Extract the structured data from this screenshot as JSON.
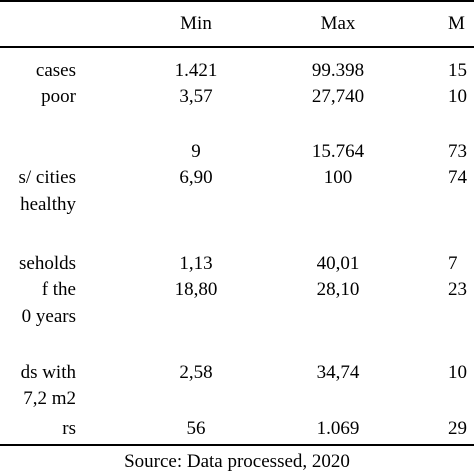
{
  "table": {
    "headers": [
      "Min",
      "Max",
      "M"
    ],
    "rows": [
      {
        "label": [
          "cases"
        ],
        "min": "1.421",
        "max": "99.398",
        "mean": "15"
      },
      {
        "label": [
          "poor"
        ],
        "min": "3,57",
        "max": "27,740",
        "mean": "10"
      },
      {
        "label": [
          ""
        ],
        "min": "9",
        "max": "15.764",
        "mean": "73"
      },
      {
        "label": [
          "s/ cities",
          "healthy"
        ],
        "min": "6,90",
        "max": "100",
        "mean": "74"
      },
      {
        "label": [
          "seholds"
        ],
        "min": "1,13",
        "max": "40,01",
        "mean": "7"
      },
      {
        "label": [
          "f the",
          "0 years"
        ],
        "min": "18,80",
        "max": "28,10",
        "mean": "23"
      },
      {
        "label": [
          "ds with",
          "7,2 m2"
        ],
        "min": "2,58",
        "max": "34,74",
        "mean": "10"
      },
      {
        "label": [
          "rs"
        ],
        "min": "56",
        "max": "1.069",
        "mean": "29"
      }
    ]
  },
  "footer": {
    "source": "Source: Data processed, 2020"
  }
}
